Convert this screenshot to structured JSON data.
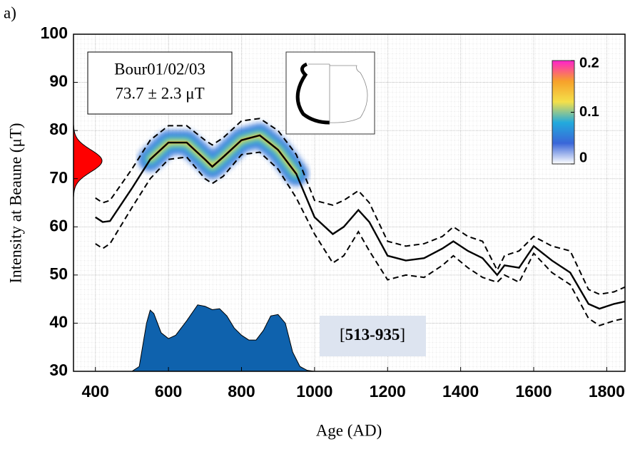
{
  "panel_label": "a)",
  "chart_data": {
    "type": "line",
    "x_label": "Age (AD)",
    "y_label": "Intensity at Beaune (μT)",
    "xlim": [
      340,
      1850
    ],
    "ylim": [
      30,
      100
    ],
    "xticks": [
      400,
      600,
      800,
      1000,
      1200,
      1400,
      1600,
      1800
    ],
    "yticks": [
      30,
      40,
      50,
      60,
      70,
      80,
      90,
      100
    ],
    "grid": true,
    "x": [
      400,
      420,
      440,
      500,
      550,
      600,
      650,
      700,
      720,
      750,
      800,
      850,
      900,
      950,
      1000,
      1050,
      1080,
      1120,
      1150,
      1200,
      1250,
      1300,
      1350,
      1380,
      1420,
      1460,
      1500,
      1520,
      1560,
      1600,
      1650,
      1700,
      1750,
      1780,
      1820,
      1850
    ],
    "series": [
      {
        "color": "#000000",
        "dash": false,
        "values": [
          62,
          61,
          61.2,
          68,
          74,
          77.5,
          77.5,
          74,
          72.5,
          74.5,
          78,
          79,
          76,
          71,
          62,
          58.5,
          60,
          63.5,
          61,
          54,
          53,
          53.5,
          55.5,
          57,
          55,
          53.5,
          50,
          52,
          51.5,
          56,
          53,
          50.5,
          44,
          43,
          44,
          44.5
        ]
      },
      {
        "color": "#000000",
        "dash": true,
        "values": [
          66,
          65,
          65.5,
          72,
          78,
          81,
          81,
          78,
          77,
          78.5,
          82,
          82.5,
          80,
          75,
          65.5,
          64.5,
          65.5,
          67.5,
          65,
          57,
          56,
          56.5,
          58,
          60,
          58,
          57,
          51,
          54,
          55,
          58,
          56,
          55,
          47,
          46,
          46.5,
          47.5
        ]
      },
      {
        "color": "#000000",
        "dash": true,
        "values": [
          56.5,
          55.5,
          56.5,
          64,
          70,
          74,
          74.5,
          70,
          69,
          70.5,
          75,
          75.5,
          72,
          66,
          58.5,
          52.5,
          54,
          59,
          55,
          49,
          50,
          49.5,
          52,
          54,
          51.5,
          49.5,
          48.5,
          50,
          48.5,
          54.5,
          50.5,
          48,
          41,
          39.5,
          40.5,
          41
        ]
      }
    ],
    "density": {
      "color": "#0f62ad",
      "x": [
        500,
        520,
        540,
        550,
        560,
        580,
        600,
        620,
        650,
        680,
        700,
        720,
        740,
        760,
        780,
        800,
        820,
        840,
        860,
        880,
        900,
        920,
        940,
        960,
        980,
        1000
      ],
      "values": [
        30,
        31,
        40,
        42.7,
        42,
        38,
        36.8,
        37.5,
        40.5,
        43.8,
        43.5,
        42.8,
        43,
        41.5,
        39,
        37.5,
        36.5,
        36.5,
        38.5,
        41.5,
        41.8,
        40,
        34,
        31,
        30.2,
        30
      ]
    },
    "prior": {
      "mean": 73.7,
      "sd": 2.3,
      "color": "#ff0000"
    },
    "annotation": [
      "Bour01/02/03",
      "73.7 ± 2.3 μT"
    ],
    "interval": {
      "open": "[",
      "text": "513-935",
      "close": "]"
    },
    "colorbar": {
      "clim": [
        0,
        0.2
      ],
      "ticks": [
        0,
        0.1,
        0.2
      ]
    }
  }
}
